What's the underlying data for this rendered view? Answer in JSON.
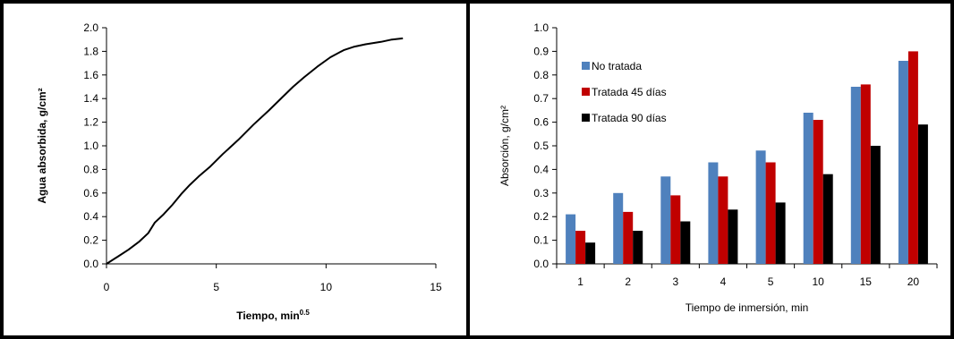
{
  "chart_data": [
    {
      "type": "line",
      "xlabel": "Tiempo, min",
      "xlabel_sup": "0.5",
      "ylabel": "Agua absorbida,  g/cm²",
      "xlim": [
        0,
        15
      ],
      "ylim": [
        0,
        2.0
      ],
      "x_ticks": [
        "0",
        "5",
        "10",
        "15"
      ],
      "y_ticks": [
        "0.0",
        "0.2",
        "0.4",
        "0.6",
        "0.8",
        "1.0",
        "1.2",
        "1.4",
        "1.6",
        "1.8",
        "2.0"
      ],
      "grid": false,
      "series": [
        {
          "color": "#000000",
          "x": [
            0,
            0.5,
            1,
            1.5,
            1.9,
            2.2,
            2.6,
            3.0,
            3.4,
            3.8,
            4.2,
            4.7,
            5.3,
            6.0,
            6.7,
            7.4,
            8.0,
            8.5,
            9.0,
            9.6,
            10.2,
            10.8,
            11.3,
            11.8,
            12.5,
            13.0,
            13.5
          ],
          "y": [
            0.0,
            0.06,
            0.12,
            0.19,
            0.26,
            0.35,
            0.42,
            0.5,
            0.59,
            0.67,
            0.74,
            0.82,
            0.93,
            1.05,
            1.18,
            1.3,
            1.41,
            1.5,
            1.58,
            1.67,
            1.75,
            1.81,
            1.84,
            1.86,
            1.88,
            1.9,
            1.91
          ]
        }
      ]
    },
    {
      "type": "bar",
      "xlabel": "Tiempo de inmersión, min",
      "ylabel": "Absorción,  g/cm²",
      "ylim": [
        0,
        1.0
      ],
      "y_ticks": [
        "0.0",
        "0.1",
        "0.2",
        "0.3",
        "0.4",
        "0.5",
        "0.6",
        "0.7",
        "0.8",
        "0.9",
        "1.0"
      ],
      "grid": false,
      "legend_position": "top-left",
      "categories": [
        "1",
        "2",
        "3",
        "4",
        "5",
        "10",
        "15",
        "20"
      ],
      "series": [
        {
          "name": "No tratada",
          "color": "#4F81BD",
          "values": [
            0.21,
            0.3,
            0.37,
            0.43,
            0.48,
            0.64,
            0.75,
            0.86
          ]
        },
        {
          "name": "Tratada 45 días",
          "color": "#C00000",
          "values": [
            0.14,
            0.22,
            0.29,
            0.37,
            0.43,
            0.61,
            0.76,
            0.9
          ]
        },
        {
          "name": "Tratada 90 días",
          "color": "#000000",
          "values": [
            0.09,
            0.14,
            0.18,
            0.23,
            0.26,
            0.38,
            0.5,
            0.59
          ]
        }
      ]
    }
  ]
}
